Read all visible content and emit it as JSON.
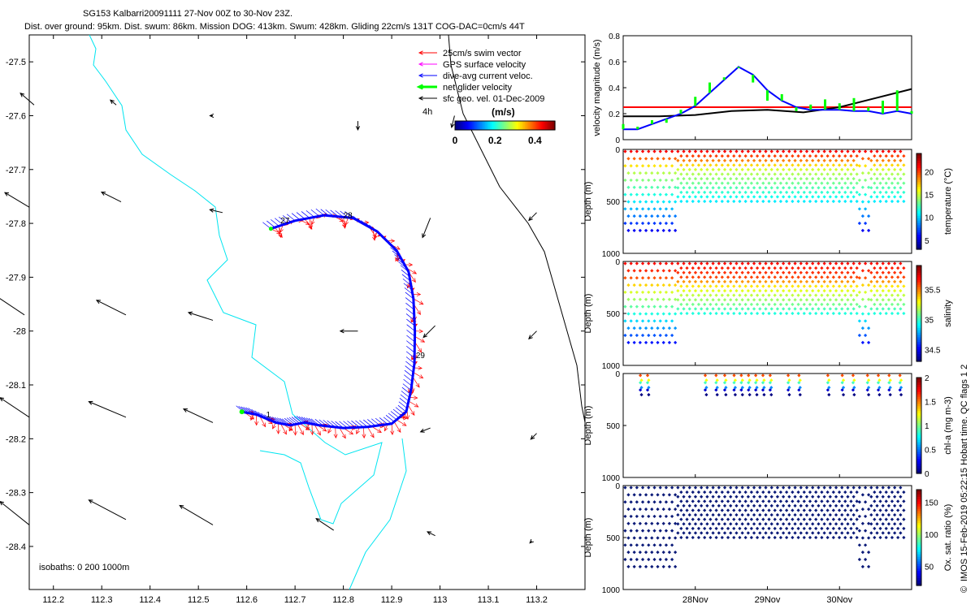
{
  "title": {
    "line1": "SG153 Kalbarri20091111 27-Nov 00Z to 30-Nov 23Z.",
    "line2": "Dist. over ground: 95km. Dist. swum: 86km. Mission DOG: 413km. Swum: 428km. Gliding 22cm/s 131T COG-DAC=0cm/s 44T"
  },
  "chart_data": [
    {
      "type": "scatter",
      "name": "map",
      "xlim": [
        112.15,
        113.3
      ],
      "ylim": [
        -28.48,
        -27.45
      ],
      "xticks": [
        112.2,
        112.3,
        112.4,
        112.5,
        112.6,
        112.7,
        112.8,
        112.9,
        113,
        113.1,
        113.2
      ],
      "xtick_labels": [
        "112.2",
        "112.3",
        "112.4",
        "112.5",
        "112.6",
        "112.7",
        "112.8",
        "112.9",
        "113",
        "113.1",
        "113.2"
      ],
      "yticks": [
        -27.5,
        -27.6,
        -27.7,
        -27.8,
        -27.9,
        -28,
        -28.1,
        -28.2,
        -28.3,
        -28.4
      ],
      "ytick_labels": [
        "-27.5",
        "-27.6",
        "-27.7",
        "-27.8",
        "-27.9",
        "-28",
        "-28.1",
        "-28.2",
        "-28.3",
        "-28.4"
      ],
      "legend": [
        {
          "label": "25cm/s swim vector",
          "color": "#ff0000"
        },
        {
          "label": "GPS surface velocity",
          "color": "#ff00ff"
        },
        {
          "label": "dive-avg current veloc.",
          "color": "#0000ff"
        },
        {
          "label": "net glider velocity",
          "color": "#00ff00"
        },
        {
          "label": "sfc geo. vel. 01-Dec-2009",
          "color": "#000000"
        }
      ],
      "colorbar": {
        "label": "(m/s)",
        "ticks": [
          "0",
          "0.2",
          "0.4"
        ],
        "range": [
          0,
          0.5
        ]
      },
      "time_label": "4h",
      "isobath_label": "isobaths: 0   200  1000m",
      "day_labels": [
        {
          "text": "27",
          "lon": 112.67,
          "lat": -27.8
        },
        {
          "text": "28",
          "lon": 112.8,
          "lat": -27.79
        },
        {
          "text": "29",
          "lon": 112.95,
          "lat": -28.05
        },
        {
          "text": "1",
          "lon": 112.64,
          "lat": -28.16
        }
      ],
      "track": [
        [
          112.65,
          -27.81
        ],
        [
          112.7,
          -27.795
        ],
        [
          112.76,
          -27.785
        ],
        [
          112.82,
          -27.79
        ],
        [
          112.87,
          -27.815
        ],
        [
          112.91,
          -27.85
        ],
        [
          112.935,
          -27.89
        ],
        [
          112.945,
          -27.94
        ],
        [
          112.948,
          -28.0
        ],
        [
          112.947,
          -28.06
        ],
        [
          112.94,
          -28.11
        ],
        [
          112.93,
          -28.15
        ],
        [
          112.9,
          -28.172
        ],
        [
          112.85,
          -28.178
        ],
        [
          112.8,
          -28.18
        ],
        [
          112.75,
          -28.175
        ],
        [
          112.72,
          -28.17
        ],
        [
          112.69,
          -28.175
        ],
        [
          112.66,
          -28.17
        ],
        [
          112.62,
          -28.155
        ],
        [
          112.59,
          -28.15
        ]
      ],
      "geo_vectors": [
        [
          112.16,
          -27.58,
          -0.14,
          0.12
        ],
        [
          112.33,
          -27.58,
          -0.06,
          0.05
        ],
        [
          112.53,
          -27.6,
          -0.03,
          0.0
        ],
        [
          112.83,
          -27.61,
          0.0,
          -0.09
        ],
        [
          113.2,
          -27.61,
          0.0,
          -0.08
        ],
        [
          112.15,
          -27.77,
          -0.25,
          0.15
        ],
        [
          112.34,
          -27.76,
          -0.2,
          0.1
        ],
        [
          112.55,
          -27.78,
          -0.13,
          0.03
        ],
        [
          112.98,
          -27.79,
          -0.08,
          -0.2
        ],
        [
          113.2,
          -27.78,
          -0.08,
          -0.08
        ],
        [
          113.03,
          -27.6,
          -0.03,
          -0.12
        ],
        [
          112.14,
          -27.97,
          -0.3,
          0.2
        ],
        [
          112.35,
          -27.97,
          -0.3,
          0.15
        ],
        [
          112.53,
          -27.98,
          -0.25,
          0.08
        ],
        [
          112.83,
          -28.0,
          -0.18,
          0.0
        ],
        [
          112.99,
          -27.99,
          -0.12,
          -0.12
        ],
        [
          113.2,
          -28.0,
          -0.08,
          -0.08
        ],
        [
          112.15,
          -28.16,
          -0.3,
          0.2
        ],
        [
          112.35,
          -28.16,
          -0.38,
          0.16
        ],
        [
          112.53,
          -28.17,
          -0.3,
          0.14
        ],
        [
          112.98,
          -28.18,
          -0.1,
          -0.04
        ],
        [
          113.2,
          -28.19,
          -0.06,
          -0.06
        ],
        [
          112.15,
          -28.36,
          -0.3,
          0.24
        ],
        [
          112.35,
          -28.35,
          -0.38,
          0.2
        ],
        [
          112.53,
          -28.36,
          -0.34,
          0.2
        ],
        [
          112.78,
          -28.37,
          -0.18,
          0.12
        ],
        [
          112.99,
          -28.38,
          -0.08,
          0.04
        ],
        [
          113.19,
          -28.39,
          -0.02,
          -0.02
        ]
      ]
    },
    {
      "type": "line",
      "name": "velocity",
      "ylabel": "velocity magnitude (m/s)",
      "ylim": [
        0,
        0.8
      ],
      "yticks": [
        0,
        0.2,
        0.4,
        0.6,
        0.8
      ],
      "ytick_labels": [
        "0",
        "0.2",
        "0.4",
        "0.6",
        "0.8"
      ],
      "xlim": [
        27.0,
        31.0
      ],
      "xticks": [
        28,
        29,
        30
      ],
      "xtick_labels": [
        "28Nov",
        "29Nov",
        "30Nov"
      ],
      "series": [
        {
          "name": "swim speed",
          "color": "#ff0000",
          "x": [
            27.0,
            31.0
          ],
          "y": [
            0.25,
            0.25
          ]
        },
        {
          "name": "surface geostrophic",
          "color": "#000000",
          "x": [
            27.0,
            27.5,
            28.0,
            28.5,
            29.0,
            29.5,
            30.0,
            30.5,
            31.0
          ],
          "y": [
            0.18,
            0.18,
            0.19,
            0.22,
            0.23,
            0.21,
            0.25,
            0.32,
            0.39
          ]
        },
        {
          "name": "dive-avg current",
          "color": "#0000ff",
          "x": [
            27.0,
            27.2,
            27.4,
            27.6,
            27.8,
            28.0,
            28.2,
            28.4,
            28.6,
            28.8,
            29.0,
            29.2,
            29.4,
            29.6,
            29.8,
            30.0,
            30.2,
            30.4,
            30.6,
            30.8,
            31.0
          ],
          "y": [
            0.08,
            0.08,
            0.12,
            0.16,
            0.2,
            0.26,
            0.36,
            0.46,
            0.56,
            0.5,
            0.38,
            0.3,
            0.25,
            0.23,
            0.23,
            0.23,
            0.22,
            0.22,
            0.2,
            0.22,
            0.2
          ]
        },
        {
          "name": "net glider velocity",
          "color": "#00ff00",
          "x": [
            27.0,
            27.2,
            27.4,
            27.6,
            27.8,
            28.0,
            28.2,
            28.4,
            28.6,
            28.8,
            29.0,
            29.2,
            29.4,
            29.6,
            29.8,
            30.0,
            30.2,
            30.4,
            30.6,
            30.8,
            31.0
          ],
          "y": [
            0.12,
            0.1,
            0.15,
            0.13,
            0.23,
            0.33,
            0.44,
            0.48,
            0.55,
            0.44,
            0.3,
            0.35,
            0.22,
            0.27,
            0.31,
            0.28,
            0.32,
            0.25,
            0.3,
            0.38,
            0.22
          ]
        }
      ]
    },
    {
      "type": "scatter",
      "name": "temperature",
      "ylabel": "Depth (m)",
      "clabel": "temperature (°C)",
      "cticks": [
        "5",
        "10",
        "15",
        "20"
      ],
      "crange": [
        3,
        24
      ],
      "ylim": [
        0,
        1000
      ],
      "yticks": [
        0,
        500,
        1000
      ],
      "ytick_labels": [
        "0",
        "500",
        "1000"
      ],
      "deep_periods": [
        [
          27.0,
          27.75
        ],
        [
          30.25,
          30.45
        ]
      ],
      "profile": [
        [
          0,
          22
        ],
        [
          100,
          19
        ],
        [
          200,
          15
        ],
        [
          400,
          12
        ],
        [
          600,
          9
        ],
        [
          800,
          5
        ]
      ]
    },
    {
      "type": "scatter",
      "name": "salinity",
      "ylabel": "Depth (m)",
      "clabel": "salinity",
      "cticks": [
        "34.5",
        "35",
        "35.5"
      ],
      "crange": [
        34.3,
        35.9
      ],
      "ylim": [
        0,
        1000
      ],
      "yticks": [
        0,
        500,
        1000
      ],
      "ytick_labels": [
        "0",
        "500",
        "1000"
      ],
      "profile": [
        [
          0,
          35.7
        ],
        [
          150,
          35.6
        ],
        [
          250,
          35.3
        ],
        [
          400,
          35.1
        ],
        [
          600,
          34.8
        ],
        [
          800,
          34.5
        ]
      ]
    },
    {
      "type": "scatter",
      "name": "chl-a",
      "ylabel": "Depth (m)",
      "clabel": "chl-a (mg m-3)",
      "cticks": [
        "0",
        "0.5",
        "1",
        "1.5",
        "2"
      ],
      "crange": [
        0,
        2
      ],
      "ylim": [
        0,
        1000
      ],
      "yticks": [
        0,
        500,
        1000
      ],
      "ytick_labels": [
        "0",
        "500",
        "1000"
      ],
      "dive_days": [
        27.25,
        27.35,
        28.15,
        28.3,
        28.42,
        28.55,
        28.65,
        28.75,
        28.85,
        28.95,
        29.05,
        29.3,
        29.45,
        29.85,
        30.05,
        30.2,
        30.4,
        30.55,
        30.7,
        30.85
      ]
    },
    {
      "type": "scatter",
      "name": "oxygen",
      "ylabel": "Depth (m)",
      "clabel": "Ox. sat. ratio (%)",
      "cticks": [
        "50",
        "100",
        "150"
      ],
      "crange": [
        20,
        170
      ],
      "ylim": [
        0,
        1000
      ],
      "yticks": [
        0,
        500,
        1000
      ],
      "ytick_labels": [
        "0",
        "500",
        "1000"
      ],
      "xtick_labels": [
        "28Nov",
        "29Nov",
        "30Nov"
      ]
    }
  ],
  "footer": "IMOS 15-Feb-2019 05:22:15 Hobart time. QC flags 1 2",
  "copyright_symbol": "©"
}
